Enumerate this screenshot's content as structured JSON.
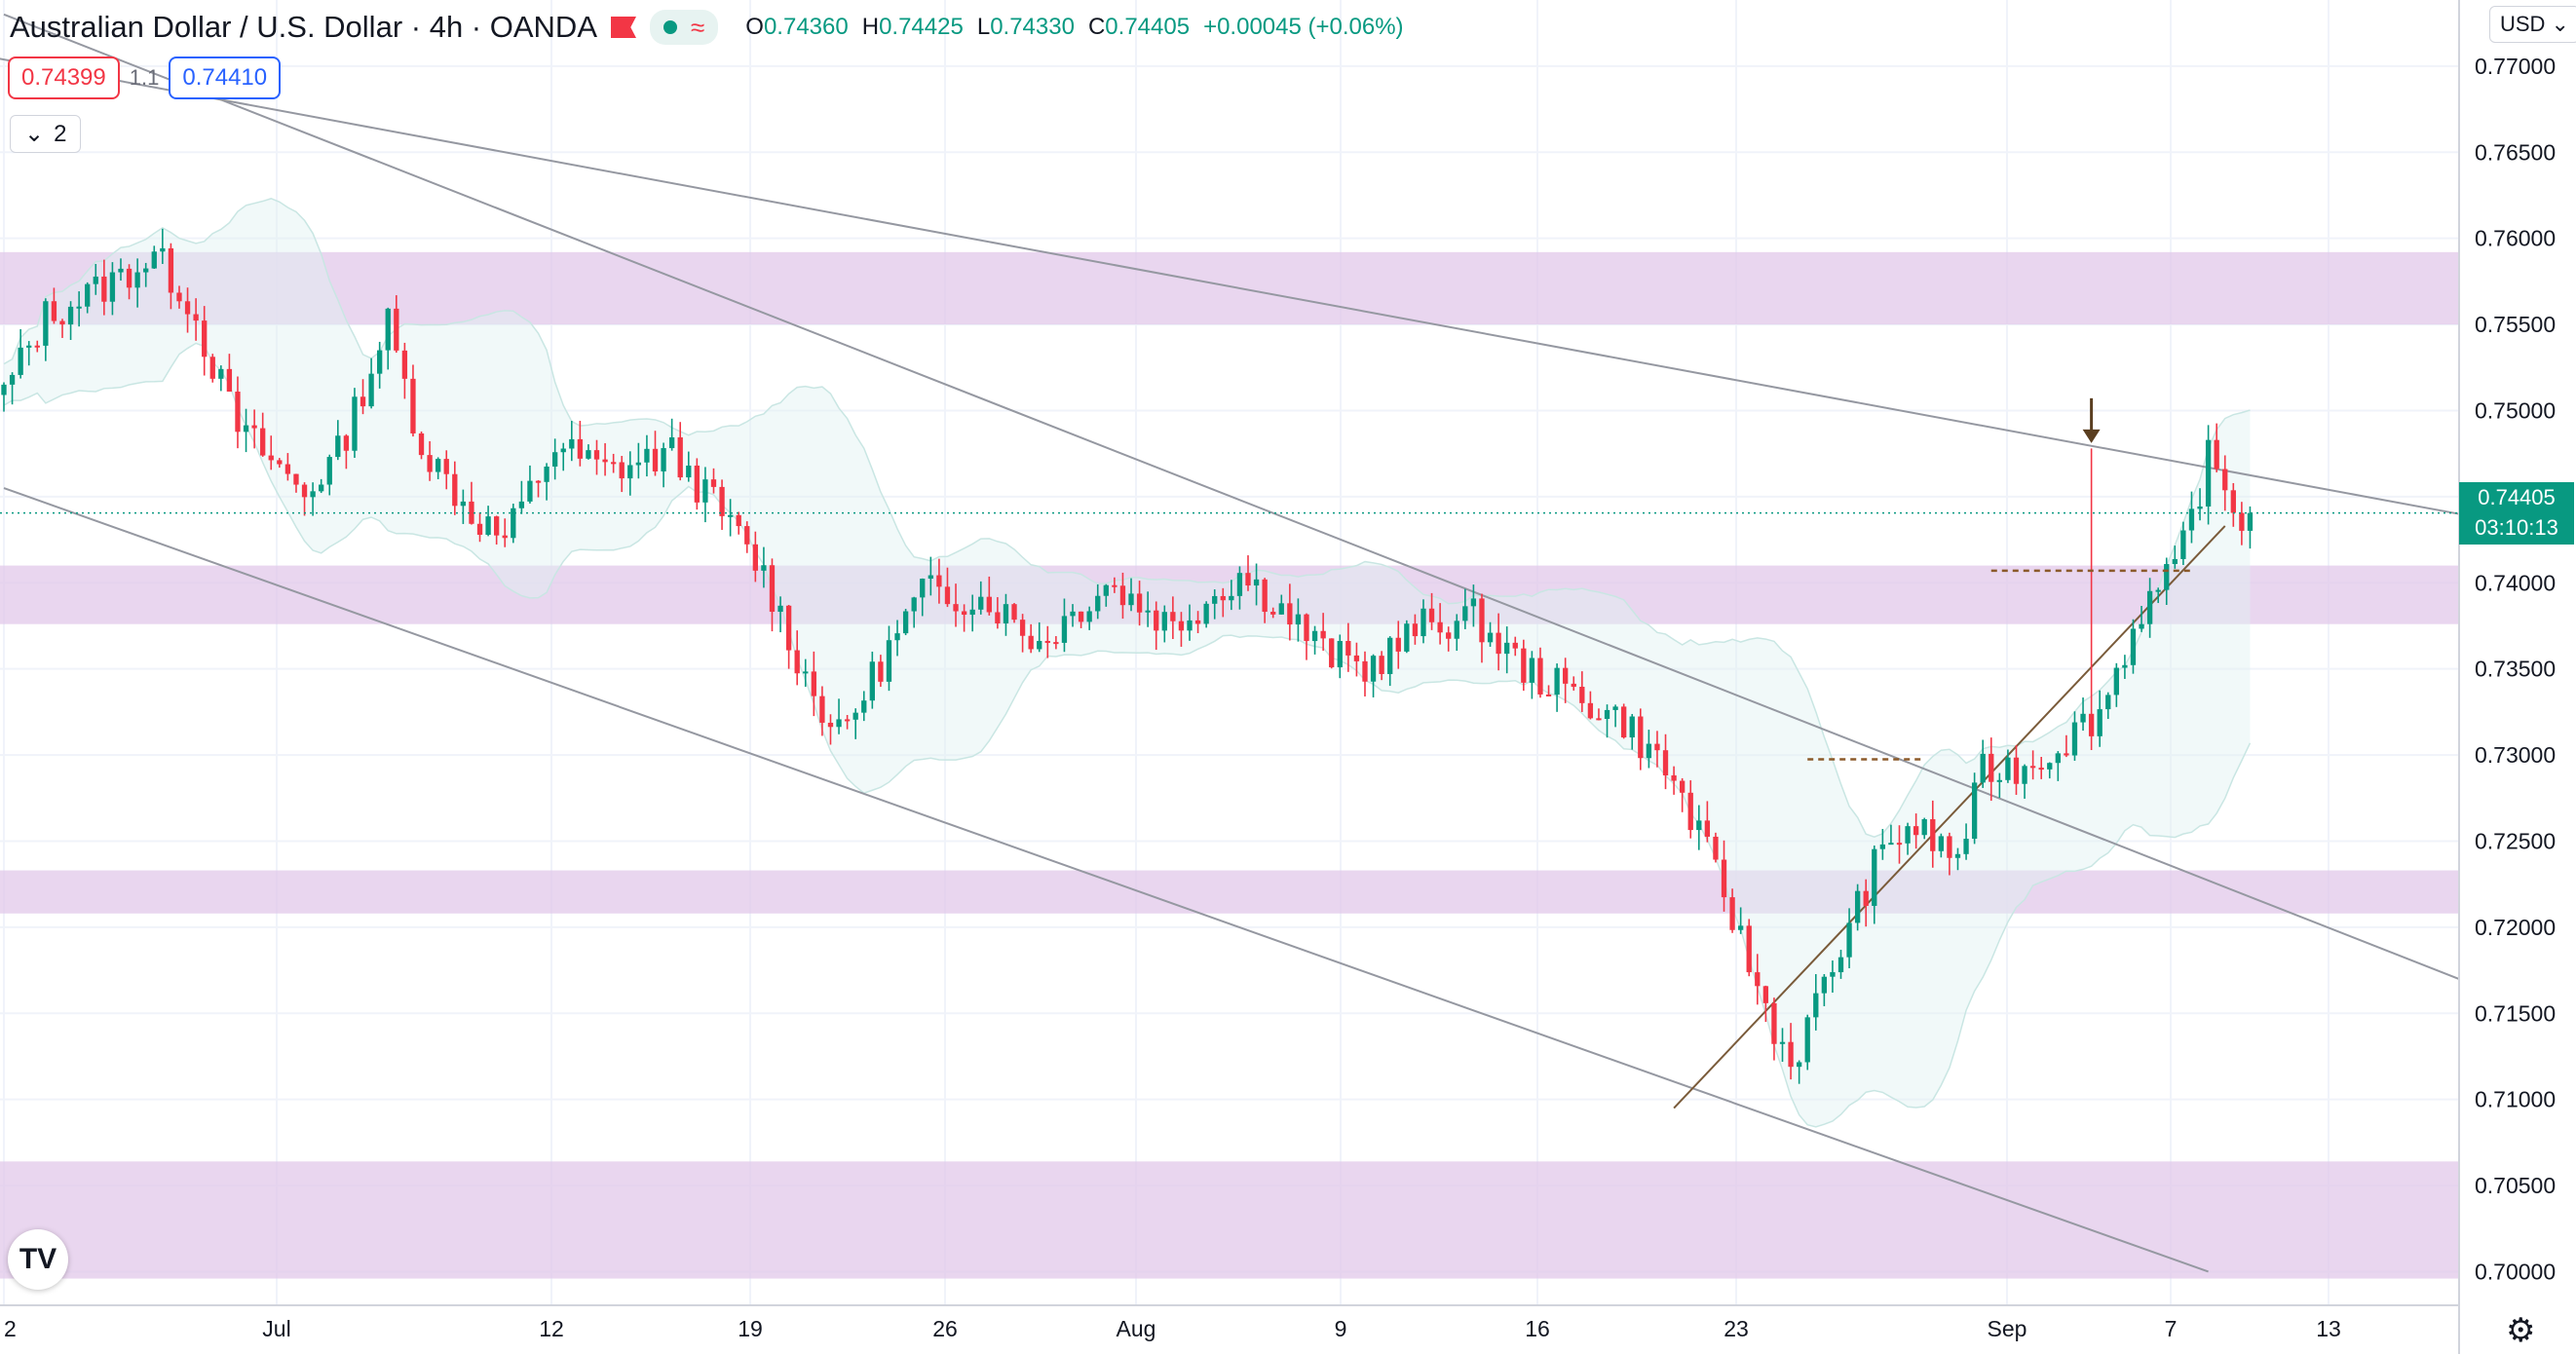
{
  "header": {
    "symbol": "Australian Dollar / U.S. Dollar",
    "interval": "4h",
    "source": "OANDA",
    "ohlc": {
      "o_label": "O",
      "o": "0.74360",
      "h_label": "H",
      "h": "0.74425",
      "l_label": "L",
      "l": "0.74330",
      "c_label": "C",
      "c": "0.74405",
      "change": "+0.00045 (+0.06%)"
    },
    "bid": "0.74399",
    "spread": "1.1",
    "ask": "0.74410",
    "indicator_count": "2",
    "currency": "USD",
    "up_color": "#089981",
    "down_color": "#f23645"
  },
  "price_label": {
    "price": "0.74405",
    "countdown": "03:10:13"
  },
  "logo": "TV",
  "icons": {
    "settings": "gear-icon",
    "flag": "flag-icon",
    "dropdown": "chevron-down-icon",
    "logo": "tradingview-logo-icon"
  },
  "chart_data": {
    "type": "candlestick",
    "ylim": [
      0.6985,
      0.7735
    ],
    "y_ticks": [
      "0.77000",
      "0.76500",
      "0.76000",
      "0.75500",
      "0.75000",
      "0.74500",
      "0.74000",
      "0.73500",
      "0.73000",
      "0.72500",
      "0.72000",
      "0.71500",
      "0.71000",
      "0.70500",
      "0.70000"
    ],
    "x_ticks": [
      "2",
      "Jul",
      "12",
      "19",
      "26",
      "Aug",
      "9",
      "16",
      "23",
      "Sep",
      "7",
      "13"
    ],
    "bars_visible": 293,
    "anchors": [
      [
        0,
        0.751
      ],
      [
        5,
        0.7555
      ],
      [
        12,
        0.7572
      ],
      [
        18,
        0.759
      ],
      [
        22,
        0.7565
      ],
      [
        28,
        0.749
      ],
      [
        36,
        0.7452
      ],
      [
        40,
        0.7475
      ],
      [
        46,
        0.755
      ],
      [
        50,
        0.748
      ],
      [
        56,
        0.744
      ],
      [
        60,
        0.7425
      ],
      [
        66,
        0.748
      ],
      [
        72,
        0.7465
      ],
      [
        80,
        0.7475
      ],
      [
        86,
        0.744
      ],
      [
        91,
        0.7405
      ],
      [
        96,
        0.7345
      ],
      [
        100,
        0.731
      ],
      [
        104,
        0.7345
      ],
      [
        110,
        0.7395
      ],
      [
        118,
        0.739
      ],
      [
        124,
        0.7365
      ],
      [
        132,
        0.74
      ],
      [
        140,
        0.7375
      ],
      [
        148,
        0.7405
      ],
      [
        152,
        0.739
      ],
      [
        158,
        0.736
      ],
      [
        163,
        0.735
      ],
      [
        170,
        0.7375
      ],
      [
        176,
        0.738
      ],
      [
        182,
        0.735
      ],
      [
        188,
        0.7335
      ],
      [
        194,
        0.732
      ],
      [
        200,
        0.7285
      ],
      [
        206,
        0.722
      ],
      [
        210,
        0.7165
      ],
      [
        214,
        0.712
      ],
      [
        218,
        0.7165
      ],
      [
        224,
        0.7235
      ],
      [
        228,
        0.726
      ],
      [
        234,
        0.724
      ],
      [
        237,
        0.729
      ],
      [
        243,
        0.7295
      ],
      [
        251,
        0.7325
      ],
      [
        256,
        0.7385
      ],
      [
        260,
        0.7405
      ],
      [
        264,
        0.7472
      ],
      [
        268,
        0.7437
      ],
      [
        269,
        0.744
      ]
    ],
    "last_close": 0.74405,
    "zones": [
      [
        0.755,
        0.7592
      ],
      [
        0.7376,
        0.741
      ],
      [
        0.7208,
        0.7233
      ],
      [
        0.6996,
        0.7064
      ]
    ],
    "trendlines": [
      {
        "from": [
          -18,
          0.772
        ],
        "to": [
          294,
          0.744
        ]
      },
      {
        "from": [
          0,
          0.773
        ],
        "to": [
          294,
          0.717
        ]
      },
      {
        "from": [
          0,
          0.7455
        ],
        "to": [
          264,
          0.7
        ]
      },
      {
        "from": [
          200,
          0.7095
        ],
        "to": [
          266,
          0.7433
        ]
      }
    ],
    "levels": [
      {
        "from": 216,
        "to": 230,
        "price": 0.72975
      },
      {
        "from": 238,
        "to": 262,
        "price": 0.7407
      }
    ],
    "arrow": {
      "bar": 250,
      "price": 0.748
    },
    "colors": {
      "zone": "#e1c8ea",
      "band": "#e0f2f1",
      "trendline": "#9598a1",
      "support": "#7a5b3a",
      "level": "#8b5a2b"
    }
  }
}
